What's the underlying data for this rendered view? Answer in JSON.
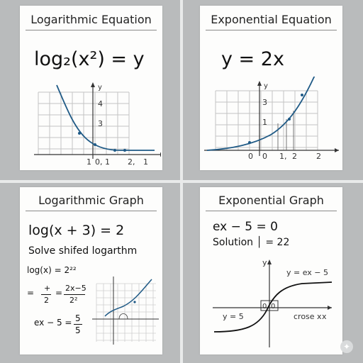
{
  "panels": {
    "log_equation": {
      "title": "Logarithmic Equation",
      "formula": "log₂(x²) = y",
      "graph": {
        "axis_label_y": "y",
        "y_ticks": [
          "4",
          "3"
        ],
        "x_ticks": [
          "1",
          "0, 1",
          "2,",
          "1"
        ]
      }
    },
    "exp_equation": {
      "title": "Exponential Equation",
      "formula": "y = 2x",
      "graph": {
        "axis_label_y": "y",
        "y_ticks": [
          "3",
          "1"
        ],
        "x_ticks": [
          "0",
          "0",
          "1,",
          "2",
          "2"
        ]
      }
    },
    "log_graph": {
      "title": "Logarithmic Graph",
      "formula": "log(x + 3) = 2",
      "subtitle": "Solve shifed logarthm",
      "work_line_1": "log(⁲x) = 2²²",
      "work_line_2_eq": "=",
      "work_line_2_frac_top": "+",
      "work_line_2_frac_bottom": "2",
      "work_line_2_eq2": "=",
      "work_line_2_frac2_top": "2x−5",
      "work_line_2_frac2_bottom": "2²",
      "work_line_3_left": "ex − 5 =",
      "work_line_3_frac_top": "5",
      "work_line_3_frac_bottom": "5"
    },
    "exp_graph": {
      "title": "Exponential Graph",
      "formula": "ex − 5 = 0",
      "solution": "Solution │ = 22",
      "graph": {
        "axis_label_y": "y",
        "curve_label": "y = ex − 5",
        "left_label": "y = 5",
        "right_label": "crose x",
        "axis_label_x": "x",
        "box_labels": [
          "0",
          "0"
        ]
      }
    }
  },
  "colors": {
    "curve": "#1f5a86",
    "grid": "#b8b8b8",
    "background": "#b9bbbc"
  }
}
